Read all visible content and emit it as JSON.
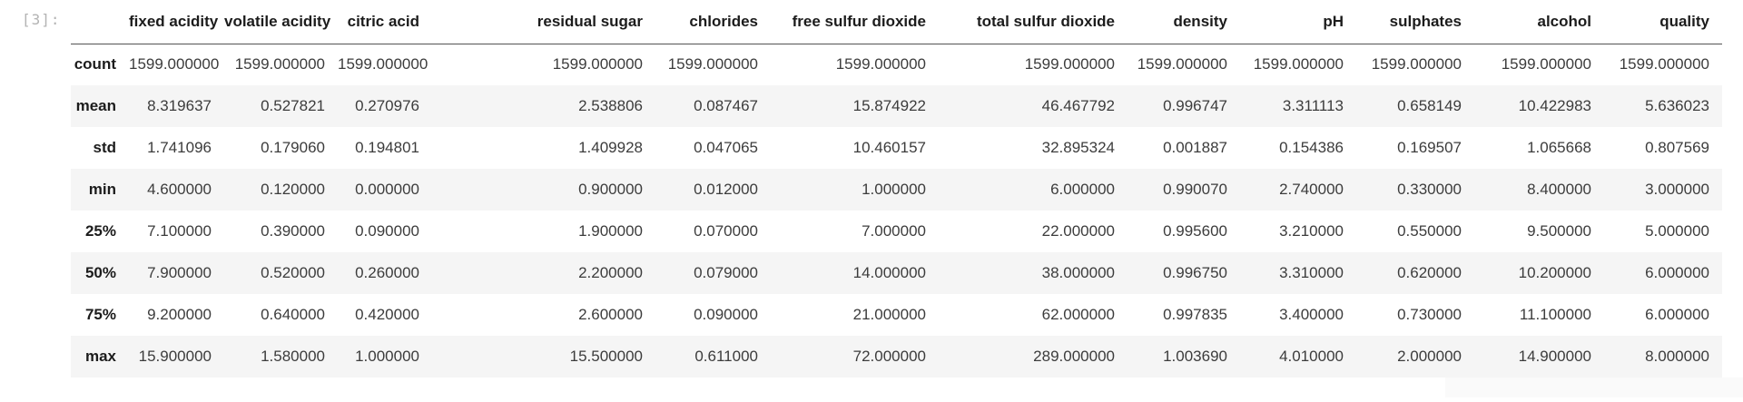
{
  "cell": {
    "execution_count": "[3]:"
  },
  "table": {
    "corner_label": "",
    "columns": [
      "fixed acidity",
      "volatile acidity",
      "citric acid",
      "residual sugar",
      "chlorides",
      "free sulfur dioxide",
      "total sulfur dioxide",
      "density",
      "pH",
      "sulphates",
      "alcohol",
      "quality"
    ],
    "rows": [
      {
        "label": "count",
        "values": [
          "1599.000000",
          "1599.000000",
          "1599.000000",
          "1599.000000",
          "1599.000000",
          "1599.000000",
          "1599.000000",
          "1599.000000",
          "1599.000000",
          "1599.000000",
          "1599.000000",
          "1599.000000"
        ]
      },
      {
        "label": "mean",
        "values": [
          "8.319637",
          "0.527821",
          "0.270976",
          "2.538806",
          "0.087467",
          "15.874922",
          "46.467792",
          "0.996747",
          "3.311113",
          "0.658149",
          "10.422983",
          "5.636023"
        ]
      },
      {
        "label": "std",
        "values": [
          "1.741096",
          "0.179060",
          "0.194801",
          "1.409928",
          "0.047065",
          "10.460157",
          "32.895324",
          "0.001887",
          "0.154386",
          "0.169507",
          "1.065668",
          "0.807569"
        ]
      },
      {
        "label": "min",
        "values": [
          "4.600000",
          "0.120000",
          "0.000000",
          "0.900000",
          "0.012000",
          "1.000000",
          "6.000000",
          "0.990070",
          "2.740000",
          "0.330000",
          "8.400000",
          "3.000000"
        ]
      },
      {
        "label": "25%",
        "values": [
          "7.100000",
          "0.390000",
          "0.090000",
          "1.900000",
          "0.070000",
          "7.000000",
          "22.000000",
          "0.995600",
          "3.210000",
          "0.550000",
          "9.500000",
          "5.000000"
        ]
      },
      {
        "label": "50%",
        "values": [
          "7.900000",
          "0.520000",
          "0.260000",
          "2.200000",
          "0.079000",
          "14.000000",
          "38.000000",
          "0.996750",
          "3.310000",
          "0.620000",
          "10.200000",
          "6.000000"
        ]
      },
      {
        "label": "75%",
        "values": [
          "9.200000",
          "0.640000",
          "0.420000",
          "2.600000",
          "0.090000",
          "21.000000",
          "62.000000",
          "0.997835",
          "3.400000",
          "0.730000",
          "11.100000",
          "6.000000"
        ]
      },
      {
        "label": "max",
        "values": [
          "15.900000",
          "1.580000",
          "1.000000",
          "15.500000",
          "0.611000",
          "72.000000",
          "289.000000",
          "1.003690",
          "4.010000",
          "2.000000",
          "14.900000",
          "8.000000"
        ]
      }
    ]
  },
  "colors": {
    "row_stripe": "#f5f5f5",
    "header_border": "#545454",
    "prompt_text": "#b3b3b3",
    "body_text": "#3c3c3c",
    "header_text": "#1c1c1c"
  }
}
